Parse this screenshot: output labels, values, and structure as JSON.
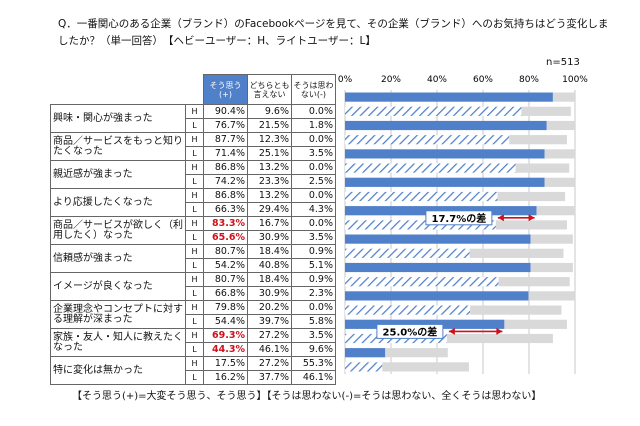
{
  "question": "Q．一番関心のある企業（ブランド）のFacebookページを見て、その企業（ブランド）へのお気持ちはどう変化しましたか？（単一回答）　【ヘビーユーザー：H、ライトユーザー：L】",
  "sample": "n=513",
  "footnote": "【そう思う(+)=大変そう思う、そう思う】【そうは思わない(-)=そうは思わない、全くそうは思わない】",
  "colors": {
    "positive": "#4f80c9",
    "neutral": "#d9d9d9",
    "hatch": "#4f80c9",
    "annotation": "#d0101a"
  },
  "chart_data": {
    "type": "bar",
    "orientation": "horizontal",
    "stacked": true,
    "xlim": [
      0,
      100
    ],
    "xticks": [
      "0%",
      "20%",
      "40%",
      "60%",
      "80%",
      "100%"
    ],
    "columns": [
      "そう思う(+)",
      "どちらとも言えない",
      "そうは思わない(-)"
    ],
    "categories": [
      {
        "label": "興味・関心が強まった",
        "H": [
          90.4,
          9.6,
          0.0
        ],
        "L": [
          76.7,
          21.5,
          1.8
        ]
      },
      {
        "label": "商品／サービスをもっと知りたくなった",
        "H": [
          87.7,
          12.3,
          0.0
        ],
        "L": [
          71.4,
          25.1,
          3.5
        ]
      },
      {
        "label": "親近感が強まった",
        "H": [
          86.8,
          13.2,
          0.0
        ],
        "L": [
          74.2,
          23.3,
          2.5
        ]
      },
      {
        "label": "より応援したくなった",
        "H": [
          86.8,
          13.2,
          0.0
        ],
        "L": [
          66.3,
          29.4,
          4.3
        ]
      },
      {
        "label": "商品／サービスが欲しく（利用したく）なった",
        "H": [
          83.3,
          16.7,
          0.0
        ],
        "L": [
          65.6,
          30.9,
          3.5
        ],
        "highlight": true
      },
      {
        "label": "信頼感が強まった",
        "H": [
          80.7,
          18.4,
          0.9
        ],
        "L": [
          54.2,
          40.8,
          5.1
        ]
      },
      {
        "label": "イメージが良くなった",
        "H": [
          80.7,
          18.4,
          0.9
        ],
        "L": [
          66.8,
          30.9,
          2.3
        ]
      },
      {
        "label": "企業理念やコンセプトに対する理解が深まった",
        "H": [
          79.8,
          20.2,
          0.0
        ],
        "L": [
          54.4,
          39.7,
          5.8
        ]
      },
      {
        "label": "家族・友人・知人に教えたくなった",
        "H": [
          69.3,
          27.2,
          3.5
        ],
        "L": [
          44.3,
          46.1,
          9.6
        ],
        "highlight": true
      },
      {
        "label": "特に変化は無かった",
        "H": [
          17.5,
          27.2,
          55.3
        ],
        "L": [
          16.2,
          37.7,
          46.1
        ]
      }
    ],
    "annotations": [
      {
        "category_index": 4,
        "text": "17.7%の差"
      },
      {
        "category_index": 8,
        "text": "25.0%の差"
      }
    ]
  }
}
